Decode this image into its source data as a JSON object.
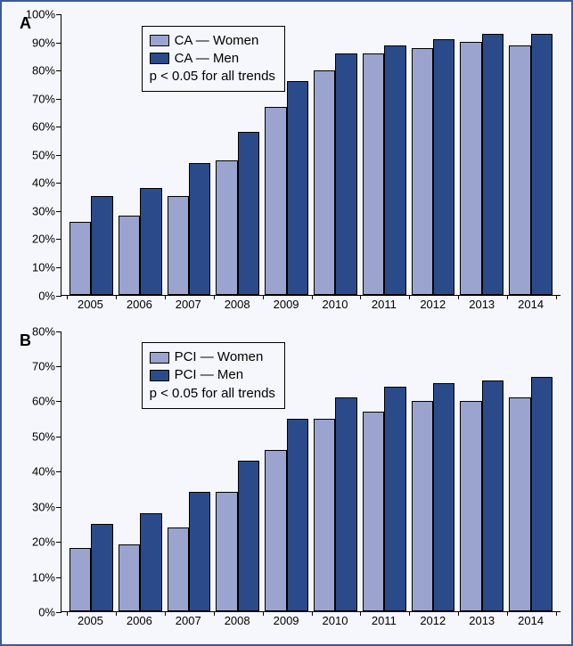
{
  "frame": {
    "border_color": "#3b5a9a",
    "background_color": "#f5f7fc"
  },
  "colors": {
    "series_women": "#9aa4cf",
    "series_men": "#2a4a8a",
    "bar_border": "#000000",
    "axis": "#000000",
    "text": "#000000"
  },
  "panels": [
    {
      "id": "A",
      "label": "A",
      "type": "bar",
      "legend": {
        "top_pct": 4,
        "left_pct": 16,
        "rows": [
          {
            "swatch": "series_women",
            "text": "CA — Women"
          },
          {
            "swatch": "series_men",
            "text": "CA — Men"
          }
        ],
        "note": "p < 0.05 for all trends"
      },
      "y": {
        "min": 0,
        "max": 100,
        "step": 10,
        "suffix": "%"
      },
      "categories": [
        "2005",
        "2006",
        "2007",
        "2008",
        "2009",
        "2010",
        "2011",
        "2012",
        "2013",
        "2014"
      ],
      "series": [
        {
          "name": "Women",
          "colorKey": "series_women",
          "values": [
            26,
            28,
            35,
            48,
            67,
            80,
            86,
            88,
            90,
            89
          ]
        },
        {
          "name": "Men",
          "colorKey": "series_men",
          "values": [
            35,
            38,
            47,
            58,
            76,
            86,
            89,
            91,
            93,
            93
          ]
        }
      ]
    },
    {
      "id": "B",
      "label": "B",
      "type": "bar",
      "legend": {
        "top_pct": 4,
        "left_pct": 16,
        "rows": [
          {
            "swatch": "series_women",
            "text": "PCI — Women"
          },
          {
            "swatch": "series_men",
            "text": "PCI — Men"
          }
        ],
        "note": "p < 0.05 for all trends"
      },
      "y": {
        "min": 0,
        "max": 80,
        "step": 10,
        "suffix": "%"
      },
      "categories": [
        "2005",
        "2006",
        "2007",
        "2008",
        "2009",
        "2010",
        "2011",
        "2012",
        "2013",
        "2014"
      ],
      "series": [
        {
          "name": "Women",
          "colorKey": "series_women",
          "values": [
            18,
            19,
            24,
            34,
            46,
            55,
            57,
            60,
            60,
            61
          ]
        },
        {
          "name": "Men",
          "colorKey": "series_men",
          "values": [
            25,
            28,
            34,
            43,
            55,
            61,
            64,
            65,
            66,
            67
          ]
        }
      ]
    }
  ]
}
